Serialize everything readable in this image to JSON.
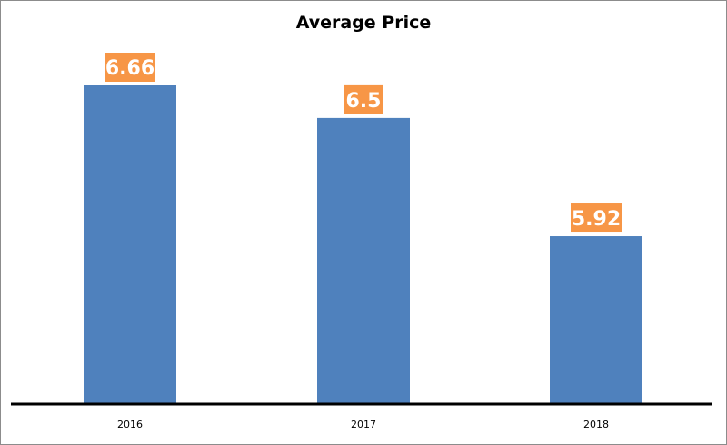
{
  "chart_data": {
    "type": "bar",
    "title": "Average Price",
    "categories": [
      "2016",
      "2017",
      "2018"
    ],
    "values": [
      6.66,
      6.5,
      5.92
    ],
    "data_labels": [
      "6.66",
      "6.5",
      "5.92"
    ],
    "xlabel": "",
    "ylabel": "",
    "ylim": [
      5.1,
      6.75
    ],
    "grid": false,
    "legend": "none",
    "colors": {
      "bar": "#4f81bd",
      "label_background": "#f79646",
      "label_text": "#ffffff",
      "axis": "#000000"
    }
  }
}
